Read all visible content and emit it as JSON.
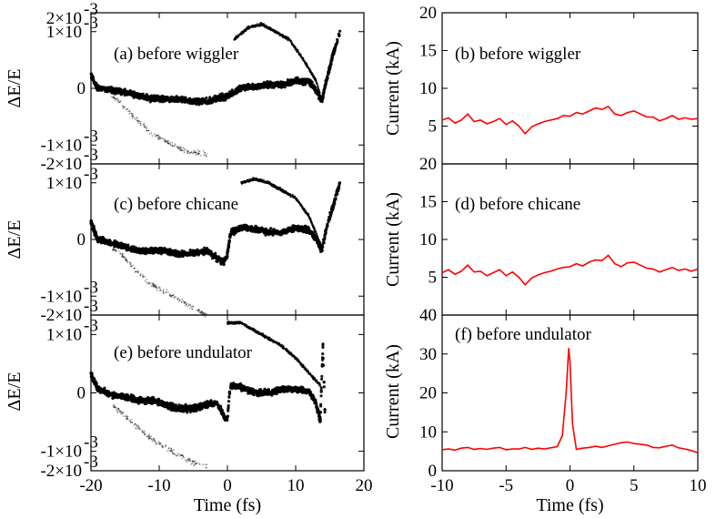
{
  "chart_data": [
    {
      "id": "a",
      "type": "scatter",
      "label": "(a) before wiggler",
      "xlim": [
        -20,
        20
      ],
      "ylim": [
        -0.002,
        0.002
      ],
      "yticks": [
        {
          "v": 0.0015,
          "t": "1×10"
        },
        {
          "v": 0,
          "t": "0"
        },
        {
          "v": -0.0015,
          "t": "-1×10"
        },
        {
          "v": -0.002,
          "t": "-2×10"
        }
      ],
      "ytick_top": {
        "t": "2×10",
        "exp": "-3"
      },
      "ylabel": "ΔE/E",
      "xlabel": "",
      "color": "#000000",
      "main_band": [
        [
          -20,
          0.00035
        ],
        [
          -19,
          0.0
        ],
        [
          -17,
          -5e-05
        ],
        [
          -15,
          -0.0001
        ],
        [
          -13,
          -0.0002
        ],
        [
          -11,
          -0.00028
        ],
        [
          -9,
          -0.00028
        ],
        [
          -7,
          -0.0003
        ],
        [
          -5,
          -0.00035
        ],
        [
          -3,
          -0.00035
        ],
        [
          -1,
          -0.00025
        ],
        [
          0,
          -0.0002
        ],
        [
          2,
          0.0
        ],
        [
          4,
          5e-05
        ],
        [
          6,
          0.0001
        ],
        [
          8,
          0.0001
        ],
        [
          10,
          0.0002
        ],
        [
          12,
          0.00018
        ],
        [
          13,
          -5e-05
        ],
        [
          13.8,
          -0.00035
        ],
        [
          14.5,
          0.0002
        ],
        [
          15.5,
          0.0009
        ],
        [
          16.5,
          0.0015
        ]
      ],
      "upper_branch": [
        [
          1,
          0.0013
        ],
        [
          3,
          0.0016
        ],
        [
          5,
          0.0017
        ],
        [
          7,
          0.0015
        ],
        [
          9,
          0.0013
        ],
        [
          11,
          0.0008
        ],
        [
          13,
          0.0002
        ],
        [
          13.8,
          -0.0003
        ]
      ],
      "lower_tail": [
        [
          -17,
          -0.0002
        ],
        [
          -15,
          -0.0005
        ],
        [
          -13,
          -0.0009
        ],
        [
          -11,
          -0.0012
        ],
        [
          -9,
          -0.0014
        ],
        [
          -7,
          -0.0016
        ],
        [
          -5,
          -0.0017
        ],
        [
          -3,
          -0.00175
        ]
      ]
    },
    {
      "id": "c",
      "type": "scatter",
      "label": "(c) before chicane",
      "xlim": [
        -20,
        20
      ],
      "ylim": [
        -0.002,
        0.002
      ],
      "yticks": [
        {
          "v": 0.0015,
          "t": "1×10"
        },
        {
          "v": 0,
          "t": "0"
        },
        {
          "v": -0.0015,
          "t": "-1×10"
        },
        {
          "v": -0.002,
          "t": "-2×10"
        }
      ],
      "ytick_top": null,
      "ylabel": "ΔE/E",
      "xlabel": "",
      "color": "#000000",
      "main_band": [
        [
          -20,
          0.00045
        ],
        [
          -19,
          0.0
        ],
        [
          -17,
          -0.0001
        ],
        [
          -15,
          -0.0002
        ],
        [
          -13,
          -0.0003
        ],
        [
          -11,
          -0.0003
        ],
        [
          -9,
          -0.0003
        ],
        [
          -7,
          -0.0004
        ],
        [
          -5,
          -0.00035
        ],
        [
          -3,
          -0.0003
        ],
        [
          -1.5,
          -0.0005
        ],
        [
          -0.5,
          -0.0006
        ],
        [
          0,
          -0.0004
        ],
        [
          0.5,
          0.0002
        ],
        [
          2,
          0.0003
        ],
        [
          4,
          0.0003
        ],
        [
          6,
          0.0002
        ],
        [
          8,
          0.0002
        ],
        [
          10,
          0.0003
        ],
        [
          12,
          0.00025
        ],
        [
          13,
          0.0
        ],
        [
          13.8,
          -0.0003
        ],
        [
          14.5,
          0.0003
        ],
        [
          15.5,
          0.0009
        ],
        [
          16.5,
          0.0015
        ]
      ],
      "upper_branch": [
        [
          2,
          0.0015
        ],
        [
          4,
          0.0016
        ],
        [
          6,
          0.0015
        ],
        [
          8,
          0.0013
        ],
        [
          10,
          0.0011
        ],
        [
          12,
          0.0006
        ],
        [
          13.8,
          -0.0002
        ]
      ],
      "lower_tail": [
        [
          -17,
          -0.0002
        ],
        [
          -15,
          -0.0005
        ],
        [
          -13,
          -0.0009
        ],
        [
          -11,
          -0.0012
        ],
        [
          -9,
          -0.0014
        ],
        [
          -7,
          -0.0016
        ],
        [
          -5,
          -0.0018
        ],
        [
          -3,
          -0.002
        ]
      ]
    },
    {
      "id": "e",
      "type": "scatter",
      "label": "(e) before undulator",
      "xlim": [
        -20,
        20
      ],
      "ylim": [
        -0.002,
        0.002
      ],
      "yticks": [
        {
          "v": 0.0015,
          "t": "1×10"
        },
        {
          "v": 0,
          "t": "0"
        },
        {
          "v": -0.0015,
          "t": "-1×10"
        },
        {
          "v": -0.002,
          "t": "-2×10"
        }
      ],
      "ytick_top": null,
      "ylabel": "ΔE/E",
      "xlabel": "Time (fs)",
      "color": "#000000",
      "xticks": [
        -20,
        -10,
        0,
        10,
        20
      ],
      "main_band": [
        [
          -20,
          0.0005
        ],
        [
          -19,
          0.0001
        ],
        [
          -17,
          -5e-05
        ],
        [
          -15,
          -0.0001
        ],
        [
          -13,
          -0.0002
        ],
        [
          -11,
          -0.0002
        ],
        [
          -9,
          -0.0003
        ],
        [
          -7,
          -0.0004
        ],
        [
          -5,
          -0.0004
        ],
        [
          -3,
          -0.0003
        ],
        [
          -1.5,
          -0.00025
        ],
        [
          -0.5,
          -0.0006
        ],
        [
          0,
          -0.0007
        ],
        [
          0.3,
          0.0
        ],
        [
          0.5,
          0.0002
        ],
        [
          2,
          0.00015
        ],
        [
          4,
          0.0
        ],
        [
          6,
          0.0
        ],
        [
          8,
          0.0001
        ],
        [
          10,
          0.0001
        ],
        [
          12,
          5e-05
        ],
        [
          13,
          -0.0003
        ],
        [
          13.6,
          -0.0007
        ],
        [
          14.0,
          0.0012
        ],
        [
          14.3,
          -0.0006
        ]
      ],
      "upper_branch": [
        [
          0,
          0.0018
        ],
        [
          2,
          0.0018
        ],
        [
          4,
          0.0016
        ],
        [
          6,
          0.0014
        ],
        [
          8,
          0.0012
        ],
        [
          10,
          0.0009
        ],
        [
          12,
          0.0005
        ],
        [
          13.6,
          0.0002
        ]
      ],
      "lower_tail": [
        [
          -17,
          -0.0003
        ],
        [
          -15,
          -0.0006
        ],
        [
          -13,
          -0.0009
        ],
        [
          -11,
          -0.0012
        ],
        [
          -9,
          -0.0014
        ],
        [
          -7,
          -0.0016
        ],
        [
          -5,
          -0.0018
        ],
        [
          -3,
          -0.0019
        ]
      ]
    },
    {
      "id": "b",
      "type": "line",
      "label": "(b) before wiggler",
      "xlim": [
        -10,
        10
      ],
      "ylim": [
        0,
        20
      ],
      "yticks": [
        {
          "v": 5,
          "t": "5"
        },
        {
          "v": 10,
          "t": "10"
        },
        {
          "v": 15,
          "t": "15"
        },
        {
          "v": 20,
          "t": "20"
        }
      ],
      "ylabel": "Current (kA)",
      "xlabel": "",
      "color": "#ff0000",
      "x": [
        -10,
        -9.5,
        -9,
        -8.5,
        -8,
        -7.5,
        -7,
        -6.5,
        -6,
        -5.5,
        -5,
        -4.5,
        -4,
        -3.5,
        -3,
        -2.5,
        -2,
        -1.5,
        -1,
        -0.5,
        0,
        0.5,
        1,
        1.5,
        2,
        2.5,
        3,
        3.5,
        4,
        4.5,
        5,
        5.5,
        6,
        6.5,
        7,
        7.5,
        8,
        8.5,
        9,
        9.5,
        10
      ],
      "values": [
        5.8,
        6.1,
        5.4,
        5.8,
        6.6,
        5.6,
        5.8,
        5.3,
        5.6,
        6.0,
        5.2,
        5.7,
        5.0,
        4.0,
        4.9,
        5.3,
        5.6,
        5.8,
        6.0,
        6.4,
        6.3,
        6.8,
        6.6,
        7.0,
        7.4,
        7.2,
        7.6,
        6.6,
        6.4,
        6.8,
        7.0,
        6.6,
        6.2,
        6.2,
        5.7,
        6.0,
        6.4,
        5.9,
        6.1,
        5.9,
        6.0
      ]
    },
    {
      "id": "d",
      "type": "line",
      "label": "(d) before chicane",
      "xlim": [
        -10,
        10
      ],
      "ylim": [
        0,
        20
      ],
      "yticks": [
        {
          "v": 5,
          "t": "5"
        },
        {
          "v": 10,
          "t": "10"
        },
        {
          "v": 15,
          "t": "15"
        },
        {
          "v": 20,
          "t": "20"
        }
      ],
      "ylabel": "Current (kA)",
      "xlabel": "",
      "color": "#ff0000",
      "x": [
        -10,
        -9.5,
        -9,
        -8.5,
        -8,
        -7.5,
        -7,
        -6.5,
        -6,
        -5.5,
        -5,
        -4.5,
        -4,
        -3.5,
        -3,
        -2.5,
        -2,
        -1.5,
        -1,
        -0.5,
        0,
        0.5,
        1,
        1.5,
        2,
        2.5,
        3,
        3.5,
        4,
        4.5,
        5,
        5.5,
        6,
        6.5,
        7,
        7.5,
        8,
        8.5,
        9,
        9.5,
        10
      ],
      "values": [
        5.6,
        6.0,
        5.4,
        5.8,
        6.6,
        5.7,
        5.8,
        5.2,
        5.6,
        6.0,
        5.2,
        5.7,
        5.0,
        4.0,
        4.9,
        5.3,
        5.6,
        5.8,
        6.1,
        6.3,
        6.4,
        6.8,
        6.5,
        7.0,
        7.3,
        7.2,
        7.9,
        6.8,
        6.4,
        6.9,
        7.0,
        6.6,
        6.2,
        6.1,
        5.7,
        6.0,
        6.3,
        5.9,
        6.1,
        5.8,
        6.1
      ]
    },
    {
      "id": "f",
      "type": "line",
      "label": "(f) before undulator",
      "xlim": [
        -10,
        10
      ],
      "ylim": [
        0,
        40
      ],
      "yticks": [
        {
          "v": 0,
          "t": "0"
        },
        {
          "v": 10,
          "t": "10"
        },
        {
          "v": 20,
          "t": "20"
        },
        {
          "v": 30,
          "t": "30"
        },
        {
          "v": 40,
          "t": "40"
        }
      ],
      "ylabel": "Current (kA)",
      "xlabel": "Time (fs)",
      "color": "#ff0000",
      "xticks": [
        -10,
        -5,
        0,
        5,
        10
      ],
      "x": [
        -10,
        -9.5,
        -9,
        -8.5,
        -8,
        -7.5,
        -7,
        -6.5,
        -6,
        -5.5,
        -5,
        -4.5,
        -4,
        -3.5,
        -3,
        -2.5,
        -2,
        -1.5,
        -1,
        -0.6,
        -0.3,
        -0.1,
        0,
        0.2,
        0.5,
        1,
        1.5,
        2,
        2.5,
        3,
        3.5,
        4,
        4.5,
        5,
        5.5,
        6,
        6.5,
        7,
        7.5,
        8,
        8.5,
        9,
        9.5,
        10
      ],
      "values": [
        5.4,
        5.6,
        5.3,
        5.8,
        6.0,
        5.5,
        5.7,
        5.5,
        5.8,
        6.0,
        5.4,
        5.6,
        5.6,
        6.0,
        5.5,
        5.8,
        5.6,
        5.9,
        6.2,
        9.0,
        20.0,
        31.5,
        28.0,
        12.0,
        5.5,
        5.8,
        6.0,
        6.3,
        6.0,
        6.4,
        6.8,
        7.2,
        7.4,
        7.0,
        6.8,
        6.6,
        6.0,
        5.9,
        6.3,
        6.6,
        5.9,
        5.6,
        5.2,
        4.6
      ]
    }
  ]
}
